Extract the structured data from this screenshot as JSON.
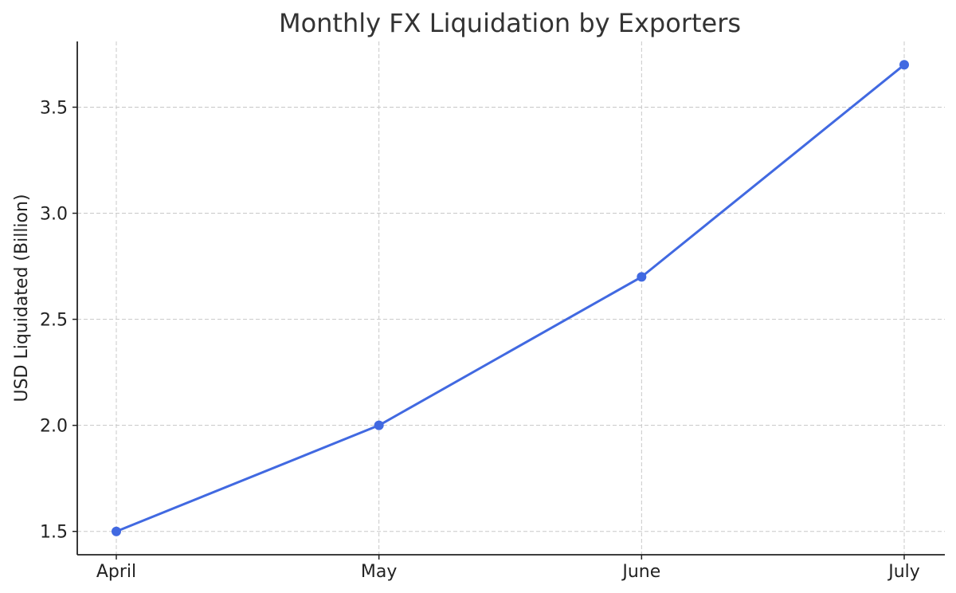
{
  "chart_data": {
    "type": "line",
    "title": "Monthly FX Liquidation by Exporters",
    "xlabel": "",
    "ylabel": "USD Liquidated (Billion)",
    "categories": [
      "April",
      "May",
      "June",
      "July"
    ],
    "series": [
      {
        "values": [
          1.5,
          2.0,
          2.7,
          3.7
        ],
        "color": "#4169e1",
        "marker": "circle"
      }
    ],
    "ylim": [
      1.39,
      3.81
    ],
    "yticks": [
      1.5,
      2.0,
      2.5,
      3.0,
      3.5
    ],
    "ytick_labels": [
      "1.5",
      "2.0",
      "2.5",
      "3.0",
      "3.5"
    ],
    "grid": true,
    "legend": "none"
  }
}
